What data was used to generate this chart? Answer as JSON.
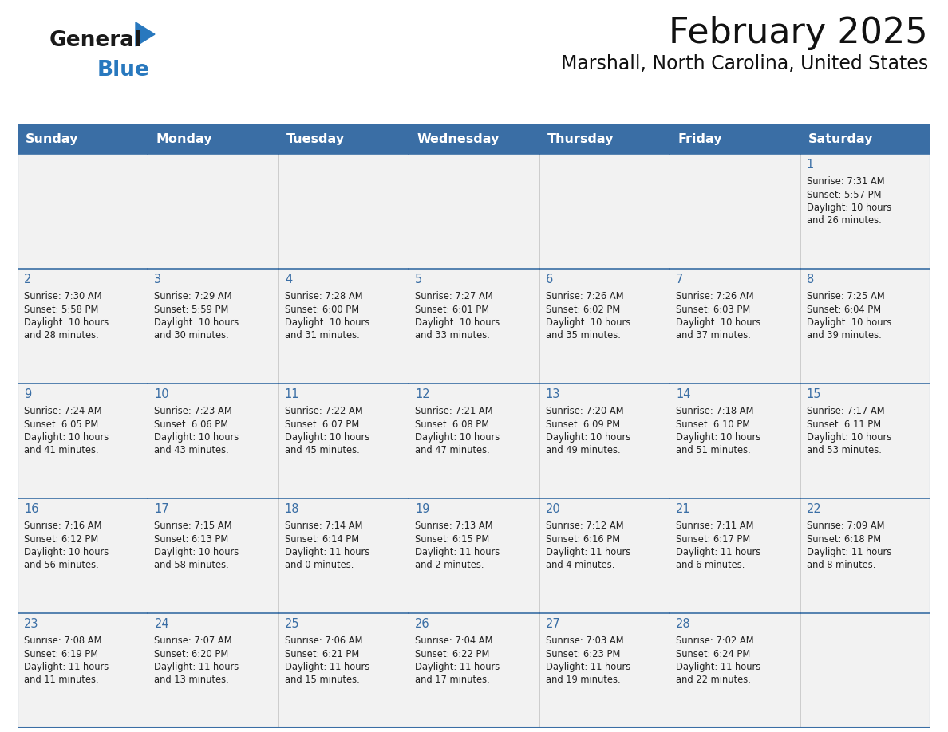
{
  "title": "February 2025",
  "subtitle": "Marshall, North Carolina, United States",
  "days_of_week": [
    "Sunday",
    "Monday",
    "Tuesday",
    "Wednesday",
    "Thursday",
    "Friday",
    "Saturday"
  ],
  "header_bg": "#3a6ea5",
  "header_text": "#ffffff",
  "cell_bg": "#f2f2f2",
  "cell_bg_empty": "#f9f9f9",
  "border_color": "#3a6ea5",
  "border_color_light": "#3a6ea5",
  "day_num_color": "#3a6ea5",
  "text_color": "#222222",
  "logo_general_color": "#1a1a1a",
  "logo_blue_color": "#2878be",
  "weeks": [
    [
      {
        "day": null,
        "sunrise": null,
        "sunset": null,
        "daylight": null
      },
      {
        "day": null,
        "sunrise": null,
        "sunset": null,
        "daylight": null
      },
      {
        "day": null,
        "sunrise": null,
        "sunset": null,
        "daylight": null
      },
      {
        "day": null,
        "sunrise": null,
        "sunset": null,
        "daylight": null
      },
      {
        "day": null,
        "sunrise": null,
        "sunset": null,
        "daylight": null
      },
      {
        "day": null,
        "sunrise": null,
        "sunset": null,
        "daylight": null
      },
      {
        "day": 1,
        "sunrise": "7:31 AM",
        "sunset": "5:57 PM",
        "daylight": "10 hours and 26 minutes."
      }
    ],
    [
      {
        "day": 2,
        "sunrise": "7:30 AM",
        "sunset": "5:58 PM",
        "daylight": "10 hours and 28 minutes."
      },
      {
        "day": 3,
        "sunrise": "7:29 AM",
        "sunset": "5:59 PM",
        "daylight": "10 hours and 30 minutes."
      },
      {
        "day": 4,
        "sunrise": "7:28 AM",
        "sunset": "6:00 PM",
        "daylight": "10 hours and 31 minutes."
      },
      {
        "day": 5,
        "sunrise": "7:27 AM",
        "sunset": "6:01 PM",
        "daylight": "10 hours and 33 minutes."
      },
      {
        "day": 6,
        "sunrise": "7:26 AM",
        "sunset": "6:02 PM",
        "daylight": "10 hours and 35 minutes."
      },
      {
        "day": 7,
        "sunrise": "7:26 AM",
        "sunset": "6:03 PM",
        "daylight": "10 hours and 37 minutes."
      },
      {
        "day": 8,
        "sunrise": "7:25 AM",
        "sunset": "6:04 PM",
        "daylight": "10 hours and 39 minutes."
      }
    ],
    [
      {
        "day": 9,
        "sunrise": "7:24 AM",
        "sunset": "6:05 PM",
        "daylight": "10 hours and 41 minutes."
      },
      {
        "day": 10,
        "sunrise": "7:23 AM",
        "sunset": "6:06 PM",
        "daylight": "10 hours and 43 minutes."
      },
      {
        "day": 11,
        "sunrise": "7:22 AM",
        "sunset": "6:07 PM",
        "daylight": "10 hours and 45 minutes."
      },
      {
        "day": 12,
        "sunrise": "7:21 AM",
        "sunset": "6:08 PM",
        "daylight": "10 hours and 47 minutes."
      },
      {
        "day": 13,
        "sunrise": "7:20 AM",
        "sunset": "6:09 PM",
        "daylight": "10 hours and 49 minutes."
      },
      {
        "day": 14,
        "sunrise": "7:18 AM",
        "sunset": "6:10 PM",
        "daylight": "10 hours and 51 minutes."
      },
      {
        "day": 15,
        "sunrise": "7:17 AM",
        "sunset": "6:11 PM",
        "daylight": "10 hours and 53 minutes."
      }
    ],
    [
      {
        "day": 16,
        "sunrise": "7:16 AM",
        "sunset": "6:12 PM",
        "daylight": "10 hours and 56 minutes."
      },
      {
        "day": 17,
        "sunrise": "7:15 AM",
        "sunset": "6:13 PM",
        "daylight": "10 hours and 58 minutes."
      },
      {
        "day": 18,
        "sunrise": "7:14 AM",
        "sunset": "6:14 PM",
        "daylight": "11 hours and 0 minutes."
      },
      {
        "day": 19,
        "sunrise": "7:13 AM",
        "sunset": "6:15 PM",
        "daylight": "11 hours and 2 minutes."
      },
      {
        "day": 20,
        "sunrise": "7:12 AM",
        "sunset": "6:16 PM",
        "daylight": "11 hours and 4 minutes."
      },
      {
        "day": 21,
        "sunrise": "7:11 AM",
        "sunset": "6:17 PM",
        "daylight": "11 hours and 6 minutes."
      },
      {
        "day": 22,
        "sunrise": "7:09 AM",
        "sunset": "6:18 PM",
        "daylight": "11 hours and 8 minutes."
      }
    ],
    [
      {
        "day": 23,
        "sunrise": "7:08 AM",
        "sunset": "6:19 PM",
        "daylight": "11 hours and 11 minutes."
      },
      {
        "day": 24,
        "sunrise": "7:07 AM",
        "sunset": "6:20 PM",
        "daylight": "11 hours and 13 minutes."
      },
      {
        "day": 25,
        "sunrise": "7:06 AM",
        "sunset": "6:21 PM",
        "daylight": "11 hours and 15 minutes."
      },
      {
        "day": 26,
        "sunrise": "7:04 AM",
        "sunset": "6:22 PM",
        "daylight": "11 hours and 17 minutes."
      },
      {
        "day": 27,
        "sunrise": "7:03 AM",
        "sunset": "6:23 PM",
        "daylight": "11 hours and 19 minutes."
      },
      {
        "day": 28,
        "sunrise": "7:02 AM",
        "sunset": "6:24 PM",
        "daylight": "11 hours and 22 minutes."
      },
      {
        "day": null,
        "sunrise": null,
        "sunset": null,
        "daylight": null
      }
    ]
  ],
  "fig_width": 11.88,
  "fig_height": 9.18,
  "dpi": 100
}
